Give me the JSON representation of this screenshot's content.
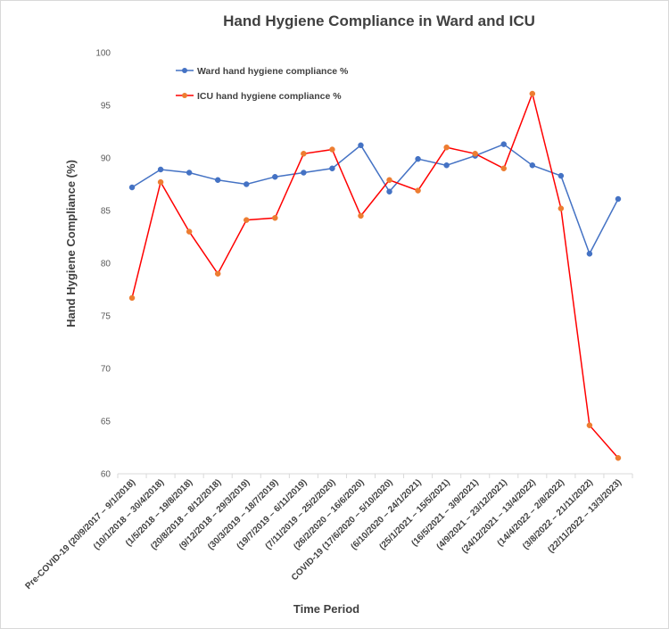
{
  "chart_data": {
    "type": "line",
    "title": "Hand Hygiene Compliance in Ward and ICU",
    "xlabel": "Time Period",
    "ylabel": "Hand Hygiene Compliance (%)",
    "ylim": [
      60,
      100
    ],
    "yticks": [
      60,
      65,
      70,
      75,
      80,
      85,
      90,
      95,
      100
    ],
    "grid": false,
    "legend_position": "top-left",
    "categories": [
      "Pre-COVID-19 (20/9/2017 – 9/1/2018)",
      "(10/1/2018 – 30/4/2018)",
      "(1/5/2018 – 19/8/2018)",
      "(20/8/2018 – 8/12/2018)",
      "(9/12/2018 – 29/3/2019)",
      "(30/3/2019 – 18/7/2019)",
      "(19/7/2019 – 6/11/2019)",
      "(7/11/2019 – 25/2/2020)",
      "(26/2/2020 – 16/6/2020)",
      "COVID-19 (17/6/2020 – 5/10/2020)",
      "(6/10/2020 – 24/1/2021)",
      "(25/1/2021 – 15/5/2021)",
      "(16/5/2021 – 3/9/2021)",
      "(4/9/2021 – 23/12/2021)",
      "(24/12/2021 – 13/4/2022)",
      "(14/4/2022 – 2/8/2022)",
      "(3/8/2022 – 21/11/2022)",
      "(22/11/2022 – 13/3/2023)"
    ],
    "series": [
      {
        "name": "Ward  hand hygiene compliance %",
        "color": "#4472c4",
        "values": [
          87.2,
          88.9,
          88.6,
          87.9,
          87.5,
          88.2,
          88.6,
          89.0,
          91.2,
          86.8,
          89.9,
          89.3,
          90.2,
          91.3,
          89.3,
          88.3,
          80.9,
          86.1
        ]
      },
      {
        "name": "ICU hand hygiene compliance %",
        "color": "#ff0000",
        "marker_color": "#ed7d31",
        "values": [
          76.7,
          87.7,
          83.0,
          79.0,
          84.1,
          84.3,
          90.4,
          90.8,
          84.5,
          87.9,
          86.9,
          91.0,
          90.4,
          89.0,
          96.1,
          85.2,
          64.6,
          61.5
        ]
      }
    ]
  }
}
